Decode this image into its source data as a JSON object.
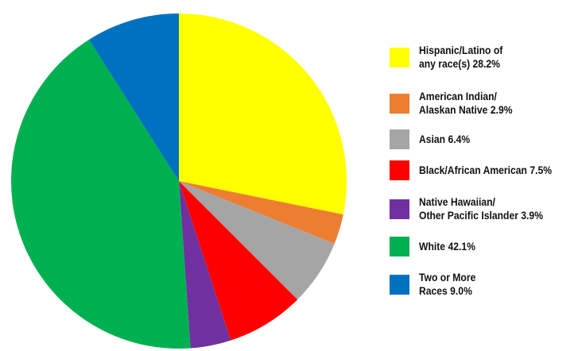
{
  "chart_data": {
    "type": "pie",
    "slices": [
      {
        "label": "Hispanic/Latino of\nany race(s) 28.2%",
        "value": 28.2,
        "color": "#FFFF00"
      },
      {
        "label": "American Indian/\nAlaskan Native 2.9%",
        "value": 2.9,
        "color": "#ED7D31"
      },
      {
        "label": "Asian 6.4%",
        "value": 6.4,
        "color": "#A5A5A5"
      },
      {
        "label": "Black/African American 7.5%",
        "value": 7.5,
        "color": "#FF0000"
      },
      {
        "label": "Native Hawaiian/\nOther Pacific Islander 3.9%",
        "value": 3.9,
        "color": "#7030A0"
      },
      {
        "label": "White 42.1%",
        "value": 42.1,
        "color": "#00B050"
      },
      {
        "label": "Two or More\nRaces 9.0%",
        "value": 9.0,
        "color": "#0070C0"
      }
    ],
    "start": "12 o'clock",
    "direction": "clockwise",
    "legend_position": "right"
  }
}
